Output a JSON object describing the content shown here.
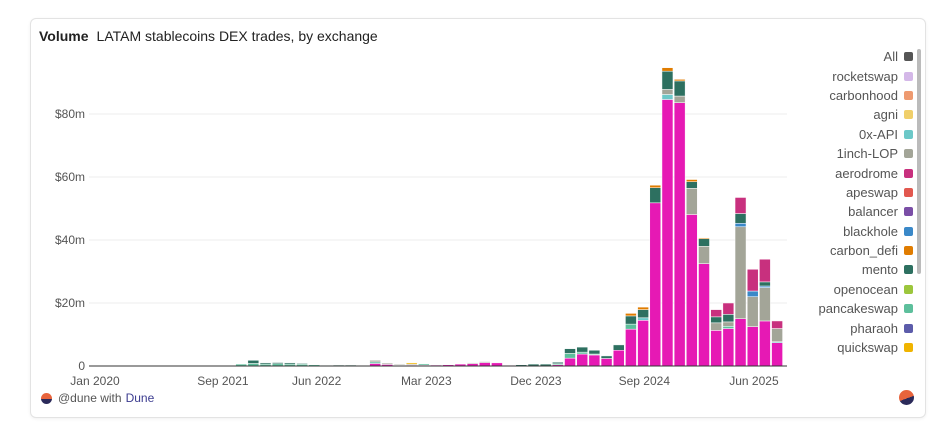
{
  "header": {
    "label": "Volume",
    "title": "LATAM stablecoins DEX trades, by exchange"
  },
  "legend": [
    {
      "name": "All",
      "color": "#555555"
    },
    {
      "name": "rocketswap",
      "color": "#d4b8e8"
    },
    {
      "name": "carbonhood",
      "color": "#ee9a70"
    },
    {
      "name": "agni",
      "color": "#f0cf6a"
    },
    {
      "name": "0x-API",
      "color": "#6cc8c8"
    },
    {
      "name": "1inch-LOP",
      "color": "#a3a598"
    },
    {
      "name": "aerodrome",
      "color": "#c8307e"
    },
    {
      "name": "apeswap",
      "color": "#e2584f"
    },
    {
      "name": "balancer",
      "color": "#7a4ea6"
    },
    {
      "name": "blackhole",
      "color": "#3a88c8"
    },
    {
      "name": "carbon_defi",
      "color": "#e07c00"
    },
    {
      "name": "mento",
      "color": "#2d7060"
    },
    {
      "name": "openocean",
      "color": "#9cc63c"
    },
    {
      "name": "pancakeswap",
      "color": "#5dbf9c"
    },
    {
      "name": "pharaoh",
      "color": "#5c5caa"
    },
    {
      "name": "quickswap",
      "color": "#f0b400"
    }
  ],
  "footer": {
    "handle": "@dune with",
    "brand": "Dune"
  },
  "chart_data": {
    "type": "bar",
    "stacked": true,
    "title": "LATAM stablecoins DEX trades, by exchange",
    "ylim": [
      0,
      100
    ],
    "yticks": [
      {
        "value": 0,
        "label": "0"
      },
      {
        "value": 20,
        "label": "$20m"
      },
      {
        "value": 40,
        "label": "$40m"
      },
      {
        "value": 60,
        "label": "$60m"
      },
      {
        "value": 80,
        "label": "$80m"
      }
    ],
    "xticks": [
      {
        "label": "Jan 2020",
        "at": 0
      },
      {
        "label": "Sep 2021",
        "at": 10.5
      },
      {
        "label": "Jun 2022",
        "at": 18.2
      },
      {
        "label": "Mar 2023",
        "at": 27.2
      },
      {
        "label": "Dec 2023",
        "at": 36.2
      },
      {
        "label": "Sep 2024",
        "at": 45.1
      },
      {
        "label": "Jun 2025",
        "at": 54.1
      }
    ],
    "grid": true,
    "legend_position": "right",
    "unit": "USD millions",
    "series_order": [
      "main",
      "pancakeswap",
      "0x-API",
      "1inch-LOP",
      "blackhole",
      "mento",
      "aerodrome",
      "carbon_defi",
      "quickswap"
    ],
    "series_colors": {
      "main": "#e619b4",
      "pancakeswap": "#5dbf9c",
      "0x-API": "#6cc8c8",
      "1inch-LOP": "#a3a598",
      "blackhole": "#3a88c8",
      "mento": "#2d7060",
      "aerodrome": "#c8307e",
      "carbon_defi": "#e07c00",
      "quickswap": "#f0b400"
    },
    "bars": [
      {},
      {},
      {},
      {},
      {},
      {},
      {},
      {},
      {},
      {},
      {},
      {},
      {
        "pancakeswap": 0.6
      },
      {
        "pancakeswap": 0.8,
        "mento": 1.0
      },
      {
        "pancakeswap": 0.6,
        "mento": 0.4
      },
      {
        "pancakeswap": 0.7,
        "mento": 0.4
      },
      {
        "pancakeswap": 0.6,
        "mento": 0.4
      },
      {
        "pancakeswap": 0.6,
        "mento": 0.2
      },
      {
        "pancakeswap": 0.4
      },
      {
        "pancakeswap": 0.2
      },
      {
        "pancakeswap": 0.2,
        "mento": 0.1
      },
      {
        "pancakeswap": 0.2,
        "mento": 0.1
      },
      {
        "pancakeswap": 0.1
      },
      {
        "main": 0.8,
        "pancakeswap": 0.5,
        "1inch-LOP": 0.5
      },
      {
        "main": 0.5,
        "1inch-LOP": 0.4
      },
      {
        "main": 0.3,
        "1inch-LOP": 0.2
      },
      {
        "main": 0.3,
        "1inch-LOP": 0.3,
        "quickswap": 0.4
      },
      {
        "main": 0.3,
        "pancakeswap": 0.4
      },
      {
        "main": 0.3
      },
      {
        "main": 0.4
      },
      {
        "main": 0.6
      },
      {
        "main": 0.8,
        "1inch-LOP": 0.2
      },
      {
        "main": 1.1,
        "1inch-LOP": 0.3
      },
      {
        "main": 1.0
      },
      {
        "main": 0.2
      },
      {
        "mento": 0.4
      },
      {
        "mento": 0.6
      },
      {
        "mento": 0.6
      },
      {
        "main": 0.4,
        "pancakeswap": 0.3,
        "mento": 0.5
      },
      {
        "main": 2.5,
        "pancakeswap": 1.5,
        "mento": 1.5
      },
      {
        "main": 3.8,
        "pancakeswap": 0.6,
        "mento": 1.6
      },
      {
        "main": 3.5,
        "pancakeswap": 0.3,
        "mento": 1.2
      },
      {
        "main": 2.4,
        "mento": 0.8
      },
      {
        "main": 5.0,
        "mento": 1.7
      },
      {
        "main": 11.7,
        "pancakeswap": 1.6,
        "mento": 2.6,
        "carbon_defi": 0.8
      },
      {
        "main": 14.5,
        "0x-API": 0.8,
        "mento": 2.6,
        "carbon_defi": 0.8
      },
      {
        "main": 51.8,
        "mento": 4.8,
        "carbon_defi": 0.8
      },
      {
        "main": 84.6,
        "0x-API": 1.6,
        "1inch-LOP": 1.6,
        "mento": 5.8,
        "carbon_defi": 1.1
      },
      {
        "main": 83.6,
        "1inch-LOP": 2.1,
        "mento": 4.8,
        "carbon_defi": 0.5
      },
      {
        "main": 48.1,
        "1inch-LOP": 8.3,
        "mento": 2.1,
        "carbon_defi": 0.7
      },
      {
        "main": 32.5,
        "1inch-LOP": 5.5,
        "mento": 2.4,
        "carbon_defi": 0.3
      },
      {
        "main": 11.3,
        "1inch-LOP": 2.4,
        "mento": 1.9,
        "aerodrome": 2.3
      },
      {
        "main": 11.9,
        "pancakeswap": 0.7,
        "1inch-LOP": 1.4,
        "mento": 2.4,
        "aerodrome": 3.6
      },
      {
        "main": 15.0,
        "1inch-LOP": 29.2,
        "blackhole": 1.1,
        "mento": 3.1,
        "aerodrome": 5.1
      },
      {
        "main": 12.5,
        "1inch-LOP": 9.5,
        "blackhole": 1.8,
        "aerodrome": 6.9
      },
      {
        "main": 14.3,
        "1inch-LOP": 10.6,
        "blackhole": 0.5,
        "mento": 1.3,
        "aerodrome": 7.2
      },
      {
        "main": 7.4,
        "0x-API": 0.3,
        "1inch-LOP": 4.2,
        "aerodrome": 2.4
      }
    ]
  }
}
